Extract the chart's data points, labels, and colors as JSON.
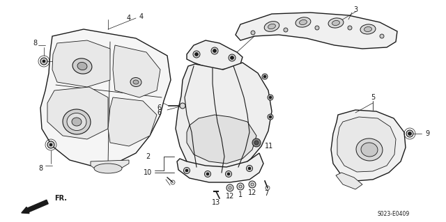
{
  "background_color": "#ffffff",
  "line_color": "#1a1a1a",
  "footer_right": "S023-E0409",
  "fig_width": 6.4,
  "fig_height": 3.19,
  "dpi": 100
}
